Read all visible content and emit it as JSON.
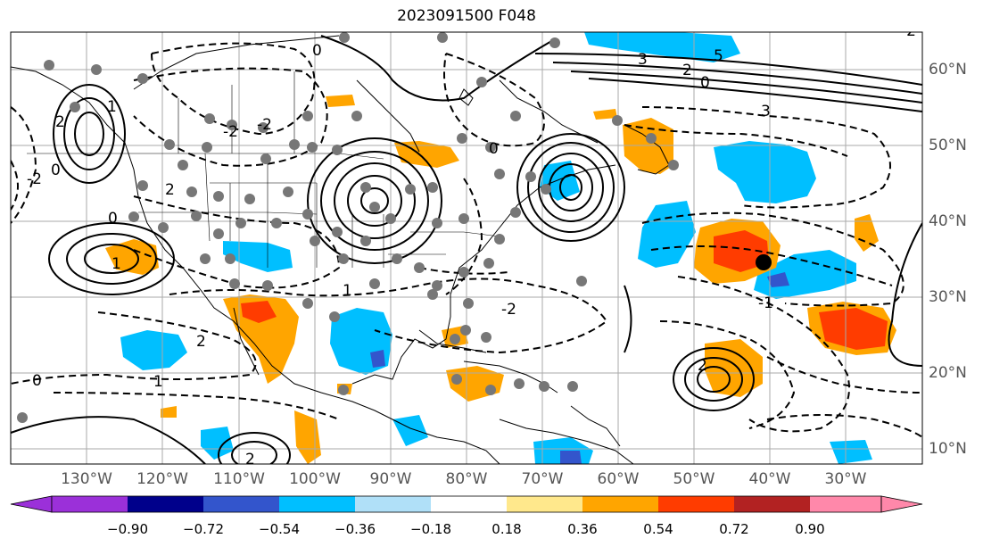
{
  "title": "2023091500 F048",
  "map": {
    "lon_labels": [
      "130°W",
      "120°W",
      "110°W",
      "100°W",
      "90°W",
      "80°W",
      "70°W",
      "60°W",
      "50°W",
      "40°W",
      "30°W"
    ],
    "lat_labels": [
      "60°N",
      "50°N",
      "40°N",
      "30°N",
      "20°N",
      "10°N"
    ],
    "contour_labels": [
      "2",
      "0",
      "3",
      "5",
      "2",
      "0",
      "3",
      "1",
      "-2",
      "-2",
      "0",
      "2",
      "0",
      "0",
      "-2",
      "1",
      "1",
      "-2",
      "2",
      "1",
      "2",
      "0",
      "-2",
      "2",
      "-1"
    ],
    "marker_symbol": "black-dot"
  },
  "colorbar": {
    "tick_labels": [
      "−0.90",
      "−0.72",
      "−0.54",
      "−0.36",
      "−0.18",
      "0.18",
      "0.36",
      "0.54",
      "0.72",
      "0.90"
    ],
    "colors": [
      "#9b30d9",
      "#00008b",
      "#3355cc",
      "#00bfff",
      "#b0e0f8",
      "#ffffff",
      "#ffe88c",
      "#ffa500",
      "#ff3c00",
      "#b22222",
      "#ff88aa"
    ]
  }
}
